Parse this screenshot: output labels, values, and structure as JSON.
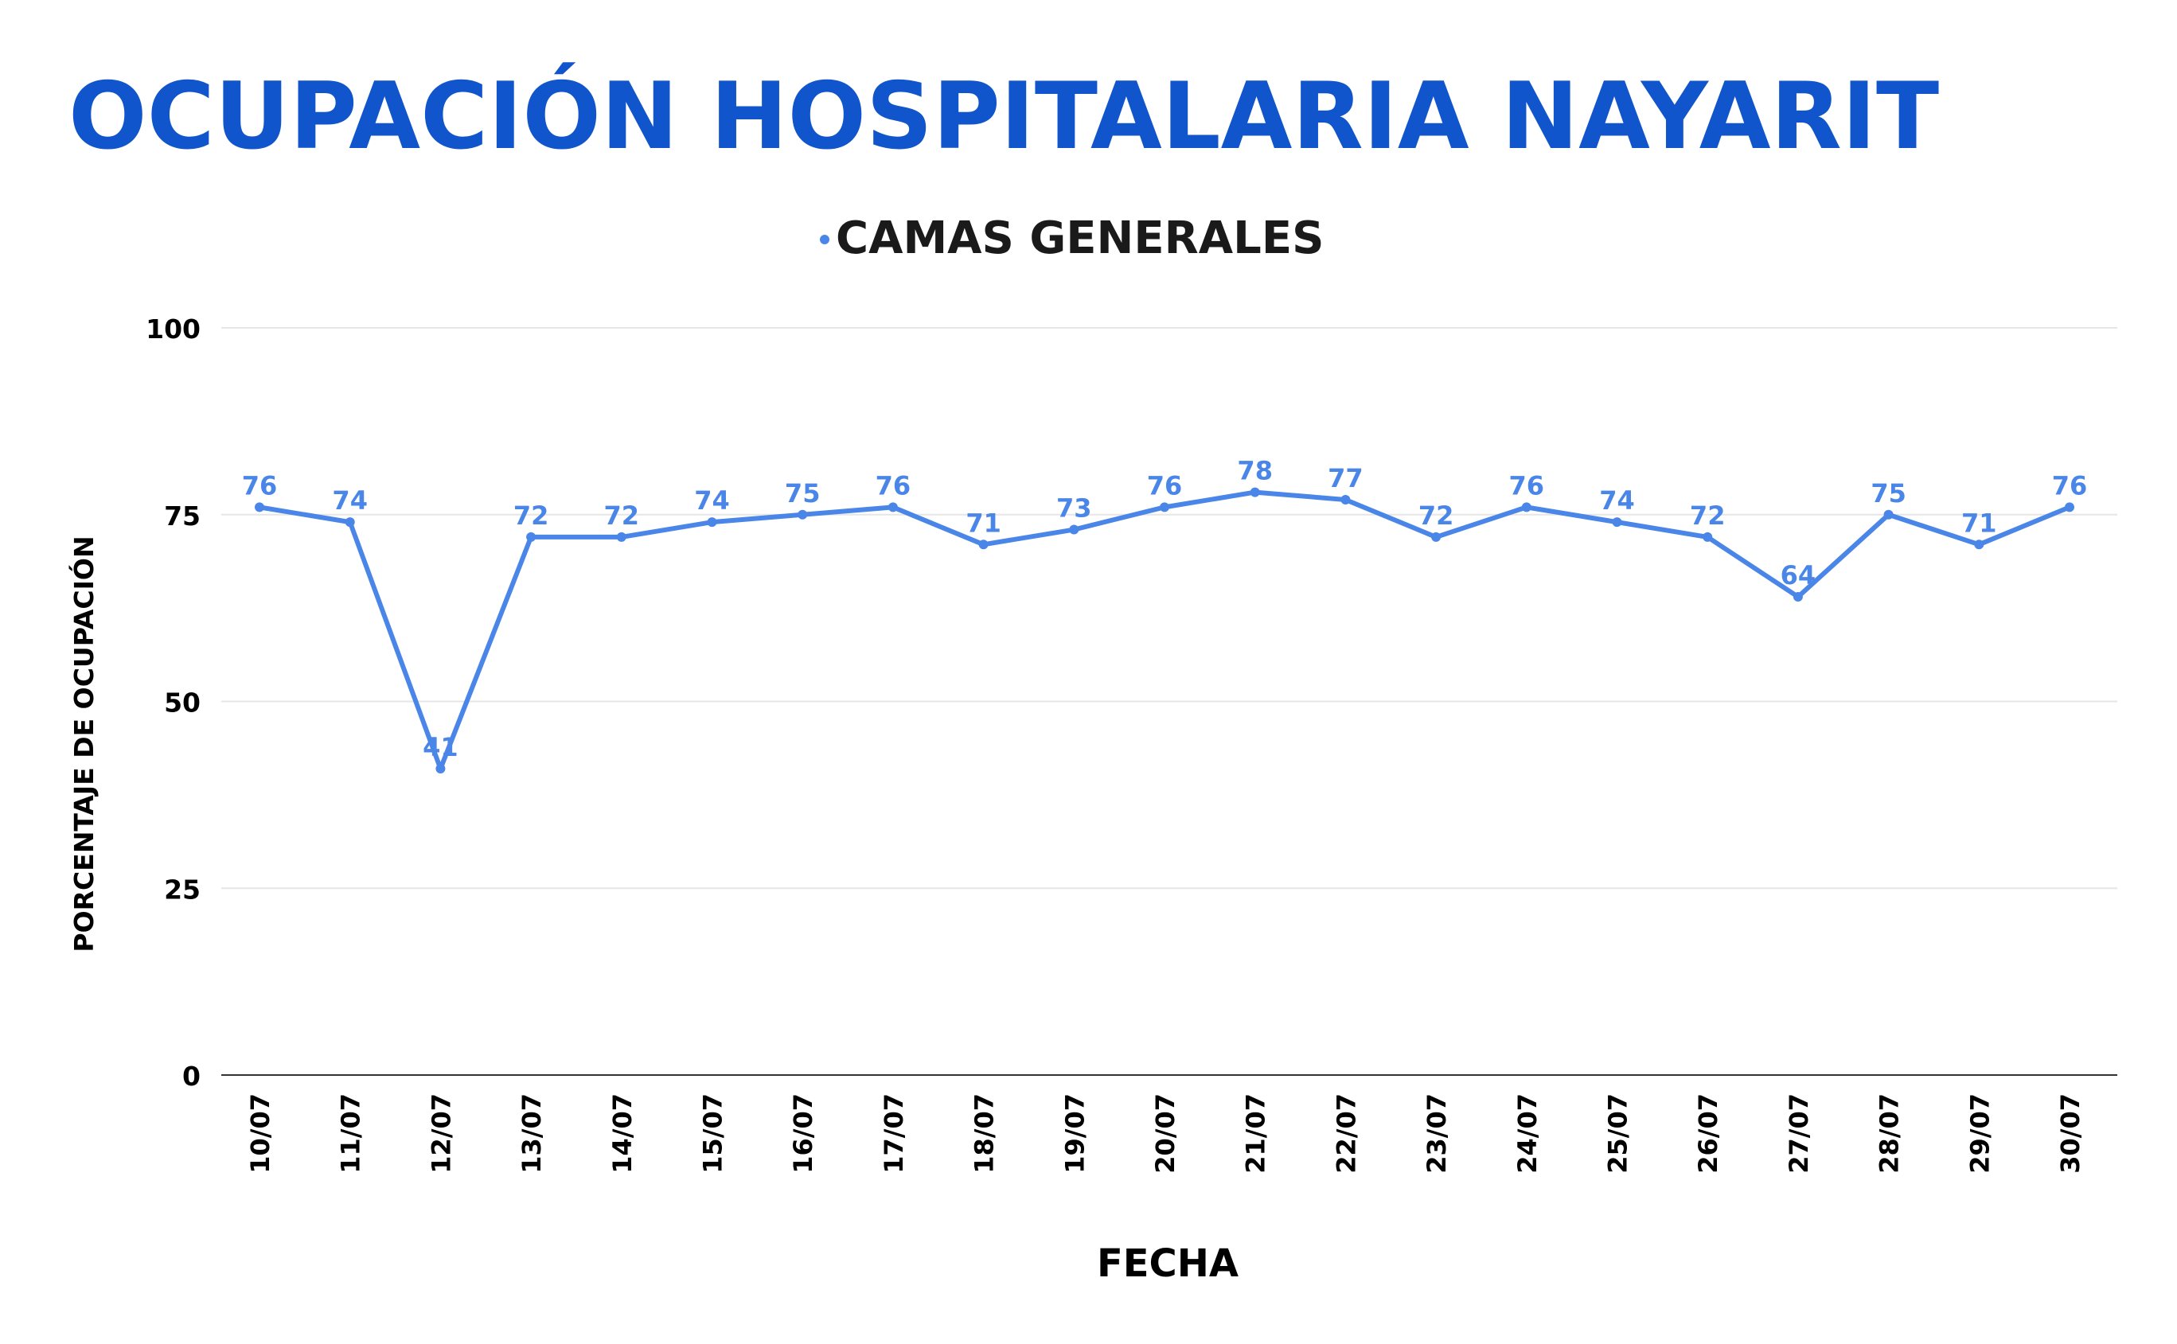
{
  "chart_data": {
    "type": "line",
    "title": "OCUPACIÓN HOSPITALARIA NAYARIT",
    "xlabel": "FECHA",
    "ylabel": "PORCENTAJE DE OCUPACIÓN",
    "ylim": [
      0,
      100
    ],
    "yticks": [
      0,
      25,
      50,
      75,
      100
    ],
    "grid": true,
    "legend_position": "top-center",
    "categories": [
      "10/07",
      "11/07",
      "12/07",
      "13/07",
      "14/07",
      "15/07",
      "16/07",
      "17/07",
      "18/07",
      "19/07",
      "20/07",
      "21/07",
      "22/07",
      "23/07",
      "24/07",
      "25/07",
      "26/07",
      "27/07",
      "28/07",
      "29/07",
      "30/07"
    ],
    "series": [
      {
        "name": "CAMAS GENERALES",
        "color": "#4a86e8",
        "values": [
          76,
          74,
          41,
          72,
          72,
          74,
          75,
          76,
          71,
          73,
          76,
          78,
          77,
          72,
          76,
          74,
          72,
          64,
          75,
          71,
          76
        ]
      }
    ]
  },
  "colors": {
    "title": "#1155cc",
    "text": "#000000",
    "grid": "#e6e6e6"
  }
}
